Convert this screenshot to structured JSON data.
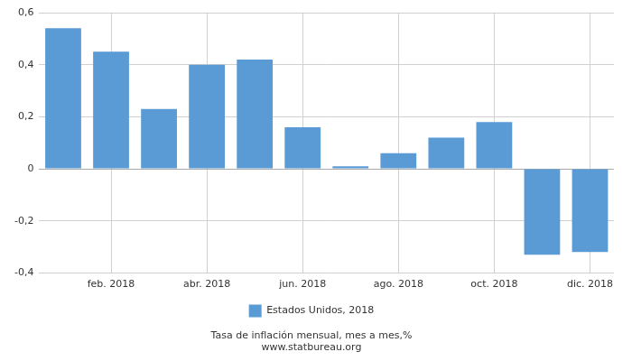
{
  "chart_data": {
    "type": "bar",
    "categories": [
      null,
      "feb. 2018",
      null,
      "abr. 2018",
      null,
      "jun. 2018",
      null,
      "ago. 2018",
      null,
      "oct. 2018",
      null,
      "dic. 2018"
    ],
    "series": [
      {
        "name": "Estados Unidos, 2018",
        "color": "#5b9bd5",
        "values": [
          0.54,
          0.45,
          0.23,
          0.4,
          0.42,
          0.16,
          0.01,
          0.06,
          0.12,
          0.18,
          -0.33,
          -0.32
        ]
      }
    ],
    "ylim": [
      -0.4,
      0.6
    ],
    "yticks": [
      {
        "value": -0.4,
        "label": "-0,4"
      },
      {
        "value": -0.2,
        "label": "-0,2"
      },
      0,
      {
        "value": 0.2,
        "label": "0,2"
      },
      {
        "value": 0.4,
        "label": "0,4"
      },
      {
        "value": 0.6,
        "label": "0,6"
      }
    ],
    "grid": true,
    "legend": "bottom",
    "annotations": [
      "Tasa de inflación mensual, mes a mes,%",
      "www.statbureau.org"
    ]
  }
}
